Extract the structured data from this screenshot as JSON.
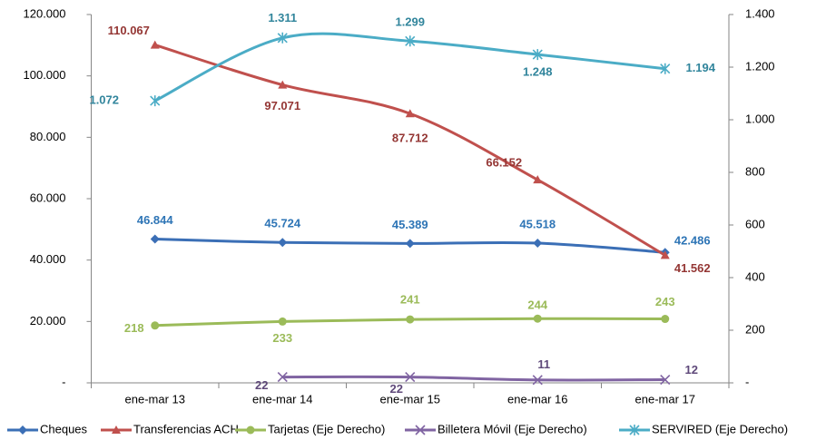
{
  "chart_data": {
    "type": "line",
    "categories": [
      "ene-mar 13",
      "ene-mar 14",
      "ene-mar 15",
      "ene-mar 16",
      "ene-mar 17"
    ],
    "ylim": [
      0,
      120000
    ],
    "yticks": [
      {
        "value": 0,
        "label": "-"
      },
      {
        "value": 20000,
        "label": "20.000"
      },
      {
        "value": 40000,
        "label": "40.000"
      },
      {
        "value": 60000,
        "label": "60.000"
      },
      {
        "value": 80000,
        "label": "80.000"
      },
      {
        "value": 100000,
        "label": "100.000"
      },
      {
        "value": 120000,
        "label": "120.000"
      }
    ],
    "y2lim": [
      0,
      1400
    ],
    "y2ticks": [
      {
        "value": 0,
        "label": "-"
      },
      200,
      400,
      600,
      800,
      {
        "value": 1000,
        "label": "1.000"
      },
      {
        "value": 1200,
        "label": "1.200"
      },
      {
        "value": 1400,
        "label": "1.400"
      }
    ],
    "legend": "bottom",
    "series": [
      {
        "name": "Cheques",
        "color": "#3b6fb6",
        "values": [
          46844,
          45724,
          45389,
          45518,
          42486
        ],
        "value_labels": [
          "46.844",
          "45.724",
          "45.389",
          "45.518",
          "42.486"
        ]
      },
      {
        "name": "Transferencias ACH",
        "color": "#c0504d",
        "values": [
          110067,
          97071,
          87712,
          66152,
          41562
        ],
        "value_labels": [
          "110.067",
          "97.071",
          "87.712",
          "66.152",
          "41.562"
        ]
      },
      {
        "name": "Tarjetas (Eje Derecho)",
        "color": "#9bbb59",
        "axis": "y2",
        "values": [
          218,
          233,
          241,
          244,
          243
        ]
      },
      {
        "name": "Billetera Móvil (Eje Derecho)",
        "color": "#8064a2",
        "axis": "y2",
        "values": [
          null,
          22,
          22,
          11,
          12
        ]
      },
      {
        "name": "SERVIRED (Eje Derecho)",
        "color": "#4bacc6",
        "axis": "y2",
        "values": [
          1072,
          1311,
          1299,
          1248,
          1194
        ],
        "value_labels": [
          "1.072",
          "1.311",
          "1.299",
          "1.248",
          "1.194"
        ]
      }
    ]
  }
}
